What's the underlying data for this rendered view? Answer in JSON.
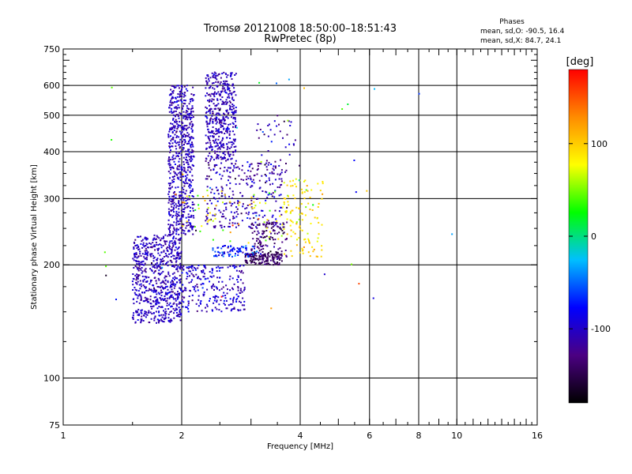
{
  "chart_data": {
    "type": "scatter",
    "title": "Tromsø 20121008 18:50:00–18:51:43",
    "subtitle": "RwPretec (8p)",
    "xlabel": "Frequency [MHz]",
    "ylabel": "Stationary phase Virtual Height [km]",
    "x_scale": "log",
    "y_scale": "log",
    "xlim": [
      1,
      16
    ],
    "ylim": [
      75,
      750
    ],
    "x_ticks": [
      1,
      2,
      4,
      6,
      8,
      10,
      16
    ],
    "y_ticks": [
      75,
      100,
      200,
      300,
      400,
      500,
      600,
      750
    ],
    "grid": true,
    "info": {
      "heading": "Phases",
      "line_o": "mean, sd,O: -90.5, 16.4",
      "line_x": "mean, sd,X:  84.7, 24.1"
    },
    "colorbar": {
      "label": "[deg]",
      "range": [
        -180,
        180
      ],
      "ticks": [
        100,
        0,
        -100
      ],
      "colors": [
        "#000000",
        "#4b0082",
        "#0000ff",
        "#00bfff",
        "#00ff00",
        "#ffff00",
        "#ff8c00",
        "#ff0000"
      ]
    },
    "clusters": [
      {
        "fmin": 1.5,
        "fmax": 2.0,
        "hmin": 140,
        "hmax": 240,
        "n": 700,
        "phase": -105,
        "sd": 12
      },
      {
        "fmin": 1.85,
        "fmax": 2.15,
        "hmin": 240,
        "hmax": 600,
        "n": 650,
        "phase": -105,
        "sd": 12
      },
      {
        "fmin": 2.0,
        "fmax": 2.9,
        "hmin": 150,
        "hmax": 200,
        "n": 250,
        "phase": -100,
        "sd": 15
      },
      {
        "fmin": 2.3,
        "fmax": 2.75,
        "hmin": 380,
        "hmax": 650,
        "n": 450,
        "phase": -105,
        "sd": 12
      },
      {
        "fmin": 2.3,
        "fmax": 3.6,
        "hmin": 250,
        "hmax": 380,
        "n": 300,
        "phase": -110,
        "sd": 18
      },
      {
        "fmin": 2.9,
        "fmax": 3.6,
        "hmin": 200,
        "hmax": 215,
        "n": 150,
        "phase": -140,
        "sd": 12
      },
      {
        "fmin": 2.4,
        "fmax": 3.2,
        "hmin": 210,
        "hmax": 225,
        "n": 80,
        "phase": -70,
        "sd": 20
      },
      {
        "fmin": 3.0,
        "fmax": 3.7,
        "hmin": 210,
        "hmax": 260,
        "n": 120,
        "phase": -135,
        "sd": 15
      },
      {
        "fmin": 3.6,
        "fmax": 4.6,
        "hmin": 210,
        "hmax": 340,
        "n": 120,
        "phase": 90,
        "sd": 15
      },
      {
        "fmin": 2.0,
        "fmax": 3.6,
        "hmin": 230,
        "hmax": 320,
        "n": 60,
        "phase": 70,
        "sd": 30
      },
      {
        "fmin": 3.0,
        "fmax": 4.0,
        "hmin": 350,
        "hmax": 500,
        "n": 40,
        "phase": -120,
        "sd": 25
      },
      {
        "fmin": 1.2,
        "fmax": 10.0,
        "hmin": 150,
        "hmax": 650,
        "n": 40,
        "phase": 0,
        "sd": 110
      }
    ]
  }
}
